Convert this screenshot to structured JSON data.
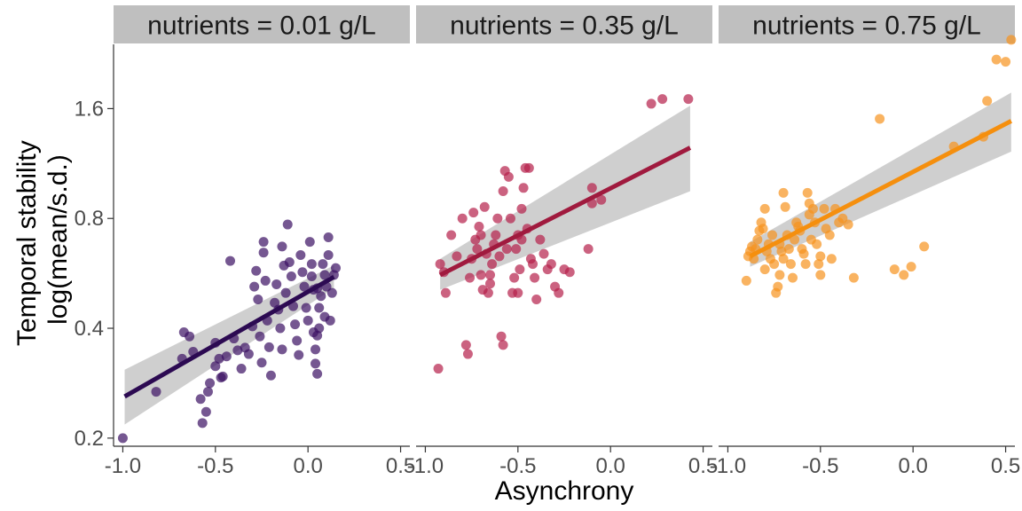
{
  "chart_data": {
    "type": "scatter",
    "xlabel": "Asynchrony",
    "ylabel": [
      "Temporal stability",
      "log(mean/s.d.)"
    ],
    "y_scale": "log",
    "x_ticks": [
      "-1.0",
      "-0.5",
      "0.0",
      "0.5"
    ],
    "x_tick_values": [
      -1.0,
      -0.5,
      0.0,
      0.5
    ],
    "y_ticks": [
      "0.2",
      "0.4",
      "0.8",
      "1.6"
    ],
    "y_tick_values": [
      0.2,
      0.4,
      0.8,
      1.6
    ],
    "xlim": [
      -1.05,
      0.55
    ],
    "ylim": [
      0.19,
      2.4
    ],
    "grid": false,
    "point_alpha": 0.7,
    "band_color": "#bfbfbf",
    "panels": [
      {
        "strip": "nutrients = 0.01 g/L",
        "color": "#3b0f63",
        "line_color": "#2c0a52",
        "fit": {
          "x": [
            -0.99,
            0.14
          ],
          "y": [
            0.26,
            0.553
          ],
          "lower": [
            0.218,
            0.515
          ],
          "upper": [
            0.308,
            0.595
          ]
        },
        "points": [
          [
            -1.0,
            0.2
          ],
          [
            -0.82,
            0.268
          ],
          [
            -0.68,
            0.33
          ],
          [
            -0.67,
            0.39
          ],
          [
            -0.64,
            0.38
          ],
          [
            -0.62,
            0.345
          ],
          [
            -0.58,
            0.256
          ],
          [
            -0.57,
            0.22
          ],
          [
            -0.55,
            0.236
          ],
          [
            -0.54,
            0.268
          ],
          [
            -0.53,
            0.283
          ],
          [
            -0.5,
            0.315
          ],
          [
            -0.5,
            0.365
          ],
          [
            -0.48,
            0.33
          ],
          [
            -0.47,
            0.293
          ],
          [
            -0.46,
            0.295
          ],
          [
            -0.44,
            0.335
          ],
          [
            -0.42,
            0.612
          ],
          [
            -0.4,
            0.375
          ],
          [
            -0.38,
            0.348
          ],
          [
            -0.36,
            0.31
          ],
          [
            -0.34,
            0.354
          ],
          [
            -0.32,
            0.34
          ],
          [
            -0.3,
            0.405
          ],
          [
            -0.29,
            0.52
          ],
          [
            -0.28,
            0.575
          ],
          [
            -0.27,
            0.48
          ],
          [
            -0.26,
            0.38
          ],
          [
            -0.25,
            0.322
          ],
          [
            -0.24,
            0.69
          ],
          [
            -0.24,
            0.645
          ],
          [
            -0.23,
            0.54
          ],
          [
            -0.22,
            0.42
          ],
          [
            -0.21,
            0.355
          ],
          [
            -0.2,
            0.297
          ],
          [
            -0.18,
            0.47
          ],
          [
            -0.17,
            0.528
          ],
          [
            -0.16,
            0.45
          ],
          [
            -0.15,
            0.4
          ],
          [
            -0.14,
            0.35
          ],
          [
            -0.14,
            0.67
          ],
          [
            -0.13,
            0.594
          ],
          [
            -0.12,
            0.5
          ],
          [
            -0.11,
            0.77
          ],
          [
            -0.1,
            0.607
          ],
          [
            -0.09,
            0.555
          ],
          [
            -0.08,
            0.46
          ],
          [
            -0.07,
            0.41
          ],
          [
            -0.06,
            0.37
          ],
          [
            -0.05,
            0.338
          ],
          [
            -0.04,
            0.635
          ],
          [
            -0.03,
            0.57
          ],
          [
            -0.02,
            0.52
          ],
          [
            -0.01,
            0.455
          ],
          [
            0.0,
            0.42
          ],
          [
            0.01,
            0.69
          ],
          [
            0.02,
            0.6
          ],
          [
            0.02,
            0.555
          ],
          [
            0.03,
            0.51
          ],
          [
            0.03,
            0.39
          ],
          [
            0.04,
            0.35
          ],
          [
            0.04,
            0.32
          ],
          [
            0.05,
            0.382
          ],
          [
            0.05,
            0.3
          ],
          [
            0.05,
            0.515
          ],
          [
            0.06,
            0.455
          ],
          [
            0.06,
            0.4
          ],
          [
            0.07,
            0.49
          ],
          [
            0.08,
            0.6
          ],
          [
            0.09,
            0.56
          ],
          [
            0.1,
            0.52
          ],
          [
            0.11,
            0.635
          ],
          [
            0.11,
            0.71
          ],
          [
            0.12,
            0.42
          ],
          [
            0.13,
            0.5
          ],
          [
            0.14,
            0.56
          ],
          [
            0.15,
            0.585
          ],
          [
            0.09,
            0.43
          ]
        ]
      },
      {
        "strip": "nutrients = 0.35 g/L",
        "color": "#b5204a",
        "line_color": "#a01a3e",
        "fit": {
          "x": [
            -0.92,
            0.43
          ],
          "y": [
            0.56,
            1.25
          ],
          "lower": [
            0.51,
            0.95
          ],
          "upper": [
            0.62,
            1.63
          ]
        },
        "points": [
          [
            -0.93,
            0.31
          ],
          [
            -0.92,
            0.6
          ],
          [
            -0.9,
            0.57
          ],
          [
            -0.89,
            0.5
          ],
          [
            -0.86,
            0.72
          ],
          [
            -0.83,
            0.63
          ],
          [
            -0.8,
            0.8
          ],
          [
            -0.78,
            0.36
          ],
          [
            -0.77,
            0.34
          ],
          [
            -0.76,
            0.55
          ],
          [
            -0.75,
            0.62
          ],
          [
            -0.74,
            0.83
          ],
          [
            -0.73,
            0.7
          ],
          [
            -0.72,
            0.66
          ],
          [
            -0.71,
            0.76
          ],
          [
            -0.7,
            0.56
          ],
          [
            -0.7,
            0.72
          ],
          [
            -0.69,
            0.51
          ],
          [
            -0.68,
            0.86
          ],
          [
            -0.67,
            0.64
          ],
          [
            -0.66,
            0.5
          ],
          [
            -0.65,
            0.53
          ],
          [
            -0.64,
            0.6
          ],
          [
            -0.63,
            0.68
          ],
          [
            -0.62,
            0.72
          ],
          [
            -0.61,
            0.8
          ],
          [
            -0.6,
            0.63
          ],
          [
            -0.59,
            0.38
          ],
          [
            -0.58,
            0.36
          ],
          [
            -0.58,
            0.95
          ],
          [
            -0.57,
            1.08
          ],
          [
            -0.56,
            0.66
          ],
          [
            -0.55,
            1.04
          ],
          [
            -0.54,
            0.8
          ],
          [
            -0.53,
            0.5
          ],
          [
            -0.52,
            0.55
          ],
          [
            -0.51,
            0.66
          ],
          [
            -0.5,
            0.72
          ],
          [
            -0.5,
            0.5
          ],
          [
            -0.49,
            0.58
          ],
          [
            -0.48,
            0.7
          ],
          [
            -0.48,
            0.85
          ],
          [
            -0.47,
            0.97
          ],
          [
            -0.46,
            1.1
          ],
          [
            -0.45,
            0.75
          ],
          [
            -0.44,
            1.1
          ],
          [
            -0.43,
            0.62
          ],
          [
            -0.42,
            0.6
          ],
          [
            -0.41,
            0.55
          ],
          [
            -0.4,
            0.48
          ],
          [
            -0.38,
            0.7
          ],
          [
            -0.36,
            0.64
          ],
          [
            -0.34,
            0.58
          ],
          [
            -0.32,
            0.6
          ],
          [
            -0.3,
            0.52
          ],
          [
            -0.28,
            0.5
          ],
          [
            -0.25,
            0.58
          ],
          [
            -0.22,
            0.57
          ],
          [
            -0.12,
            0.66
          ],
          [
            -0.1,
            0.88
          ],
          [
            -0.1,
            0.97
          ],
          [
            -0.05,
            0.9
          ],
          [
            0.22,
            1.65
          ],
          [
            0.28,
            1.7
          ],
          [
            0.42,
            1.7
          ],
          [
            -0.65,
            0.56
          ]
        ]
      },
      {
        "strip": "nutrients = 0.75 g/L",
        "color": "#f7931e",
        "line_color": "#f58f0e",
        "fit": {
          "x": [
            -0.88,
            0.53
          ],
          "y": [
            0.63,
            1.48
          ],
          "lower": [
            0.59,
            1.22
          ],
          "upper": [
            0.69,
            1.77
          ]
        },
        "points": [
          [
            -0.9,
            0.54
          ],
          [
            -0.89,
            0.63
          ],
          [
            -0.88,
            0.65
          ],
          [
            -0.87,
            0.67
          ],
          [
            -0.86,
            0.62
          ],
          [
            -0.85,
            0.66
          ],
          [
            -0.84,
            0.7
          ],
          [
            -0.83,
            0.74
          ],
          [
            -0.82,
            0.78
          ],
          [
            -0.81,
            0.75
          ],
          [
            -0.8,
            0.58
          ],
          [
            -0.8,
            0.85
          ],
          [
            -0.79,
            0.65
          ],
          [
            -0.78,
            0.68
          ],
          [
            -0.77,
            0.62
          ],
          [
            -0.76,
            0.72
          ],
          [
            -0.75,
            0.6
          ],
          [
            -0.74,
            0.5
          ],
          [
            -0.73,
            0.52
          ],
          [
            -0.72,
            0.56
          ],
          [
            -0.72,
            0.68
          ],
          [
            -0.71,
            0.65
          ],
          [
            -0.7,
            0.62
          ],
          [
            -0.7,
            0.94
          ],
          [
            -0.69,
            0.86
          ],
          [
            -0.68,
            0.72
          ],
          [
            -0.67,
            0.66
          ],
          [
            -0.66,
            0.6
          ],
          [
            -0.65,
            0.55
          ],
          [
            -0.64,
            0.7
          ],
          [
            -0.63,
            0.78
          ],
          [
            -0.62,
            0.76
          ],
          [
            -0.61,
            0.74
          ],
          [
            -0.6,
            0.66
          ],
          [
            -0.59,
            0.64
          ],
          [
            -0.58,
            0.6
          ],
          [
            -0.57,
            0.94
          ],
          [
            -0.56,
            0.88
          ],
          [
            -0.56,
            0.82
          ],
          [
            -0.55,
            0.7
          ],
          [
            -0.54,
            0.85
          ],
          [
            -0.53,
            0.78
          ],
          [
            -0.52,
            0.68
          ],
          [
            -0.51,
            0.6
          ],
          [
            -0.5,
            0.56
          ],
          [
            -0.5,
            0.63
          ],
          [
            -0.48,
            0.85
          ],
          [
            -0.47,
            0.75
          ],
          [
            -0.45,
            0.72
          ],
          [
            -0.44,
            0.62
          ],
          [
            -0.42,
            0.85
          ],
          [
            -0.4,
            0.78
          ],
          [
            -0.38,
            0.8
          ],
          [
            -0.35,
            0.77
          ],
          [
            -0.32,
            0.55
          ],
          [
            -0.18,
            1.5
          ],
          [
            -0.1,
            0.58
          ],
          [
            -0.05,
            0.56
          ],
          [
            -0.01,
            0.59
          ],
          [
            0.06,
            0.67
          ],
          [
            0.22,
            1.26
          ],
          [
            0.38,
            1.34
          ],
          [
            0.4,
            1.68
          ],
          [
            0.45,
            2.18
          ],
          [
            0.5,
            2.15
          ],
          [
            0.53,
            2.47
          ]
        ]
      }
    ]
  }
}
